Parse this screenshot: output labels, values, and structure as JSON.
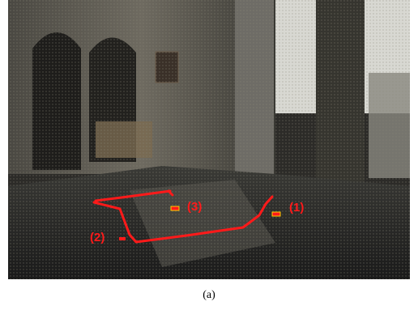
{
  "labels": [
    "(1)",
    "(2)",
    "(3)"
  ],
  "caption": "(a)"
}
